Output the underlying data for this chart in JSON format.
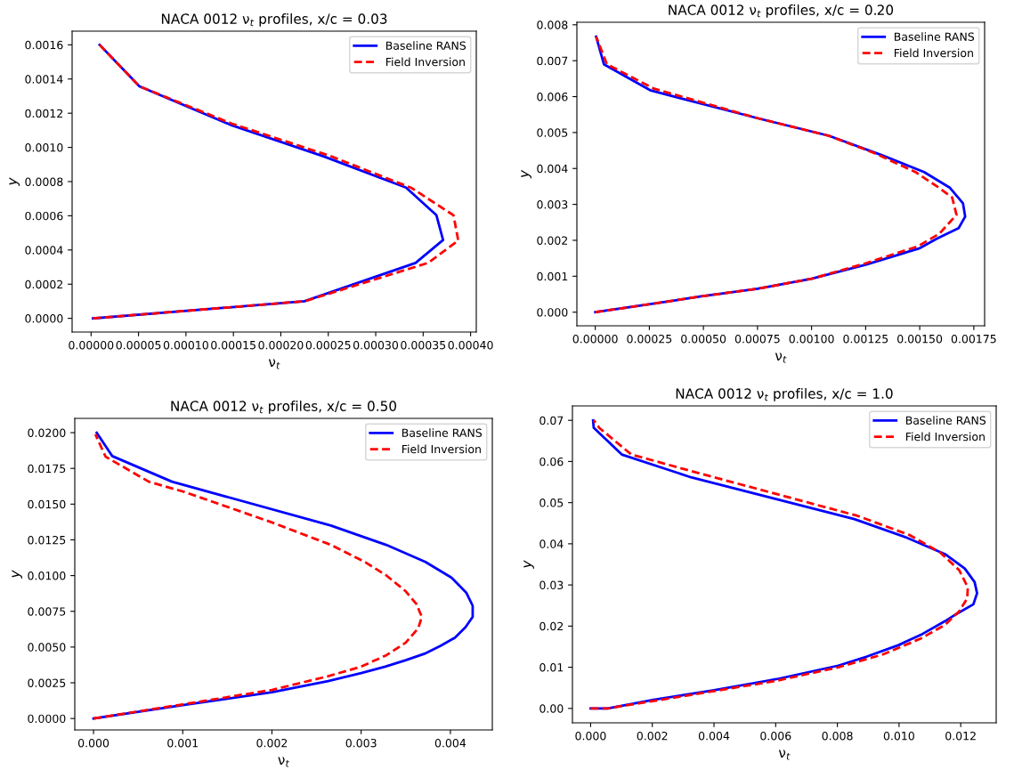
{
  "chart_data": [
    {
      "type": "line",
      "title": "NACA 0012 ν$_{t}$ profiles, x/c = 0.03",
      "xlabel": "ν$_{t}$",
      "ylabel": "y",
      "legend": "top right",
      "grid": false,
      "xlim": [
        -2e-05,
        0.000406
      ],
      "ylim": [
        -8e-05,
        0.00168
      ],
      "xticks": [
        {
          "value": 0,
          "label": "0.00000"
        },
        {
          "value": 5e-05,
          "label": "0.00005"
        },
        {
          "value": 0.0001,
          "label": "0.00010"
        },
        {
          "value": 0.00015,
          "label": "0.00015"
        },
        {
          "value": 0.0002,
          "label": "0.00020"
        },
        {
          "value": 0.00025,
          "label": "0.00025"
        },
        {
          "value": 0.0003,
          "label": "0.00030"
        },
        {
          "value": 0.00035,
          "label": "0.00035"
        },
        {
          "value": 0.0004,
          "label": "0.00040"
        }
      ],
      "yticks": [
        {
          "value": 0,
          "label": "0.0000"
        },
        {
          "value": 0.0002,
          "label": "0.0002"
        },
        {
          "value": 0.0004,
          "label": "0.0004"
        },
        {
          "value": 0.0006,
          "label": "0.0006"
        },
        {
          "value": 0.0008,
          "label": "0.0008"
        },
        {
          "value": 0.001,
          "label": "0.0010"
        },
        {
          "value": 0.0012,
          "label": "0.0012"
        },
        {
          "value": 0.0014,
          "label": "0.0014"
        },
        {
          "value": 0.0016,
          "label": "0.0016"
        }
      ],
      "series": [
        {
          "name": "Baseline RANS",
          "color": "#0000ff",
          "line_style": "solid",
          "x": [
            2e-06,
            0.000225,
            0.000342,
            0.000371,
            0.000364,
            0.000332,
            0.000245,
            0.000148,
            5.1e-05,
            9e-06
          ],
          "values": [
            0,
            0.0001,
            0.000324,
            0.000458,
            0.000603,
            0.000765,
            0.000948,
            0.00113,
            0.001357,
            0.0016
          ]
        },
        {
          "name": "Field Inversion",
          "color": "#ff0000",
          "line_style": "dashed",
          "x": [
            2e-06,
            0.000225,
            0.000355,
            0.000387,
            0.000382,
            0.000338,
            0.000252,
            0.000148,
            5.1e-05,
            9e-06
          ],
          "values": [
            0,
            0.0001,
            0.000324,
            0.000455,
            0.000603,
            0.000762,
            0.00095,
            0.00114,
            0.001357,
            0.0016
          ]
        }
      ]
    },
    {
      "type": "line",
      "title": "NACA 0012 ν$_{t}$ profiles, x/c = 0.20",
      "xlabel": "ν$_{t}$",
      "ylabel": "y",
      "legend": "top right",
      "grid": false,
      "xlim": [
        -8.5e-05,
        0.0018
      ],
      "ylim": [
        -0.00038,
        0.00807
      ],
      "xticks": [
        {
          "value": 0,
          "label": "0.00000"
        },
        {
          "value": 0.00025,
          "label": "0.00025"
        },
        {
          "value": 0.0005,
          "label": "0.00050"
        },
        {
          "value": 0.00075,
          "label": "0.00075"
        },
        {
          "value": 0.001,
          "label": "0.00100"
        },
        {
          "value": 0.00125,
          "label": "0.00125"
        },
        {
          "value": 0.0015,
          "label": "0.00150"
        },
        {
          "value": 0.00175,
          "label": "0.00175"
        }
      ],
      "yticks": [
        {
          "value": 0,
          "label": "0.000"
        },
        {
          "value": 0.001,
          "label": "0.001"
        },
        {
          "value": 0.002,
          "label": "0.002"
        },
        {
          "value": 0.003,
          "label": "0.003"
        },
        {
          "value": 0.004,
          "label": "0.004"
        },
        {
          "value": 0.005,
          "label": "0.005"
        },
        {
          "value": 0.006,
          "label": "0.006"
        },
        {
          "value": 0.007,
          "label": "0.007"
        },
        {
          "value": 0.008,
          "label": "0.008"
        }
      ],
      "series": [
        {
          "name": "Baseline RANS",
          "color": "#0000ff",
          "line_style": "solid",
          "x": [
            0,
            0.00024,
            0.00049,
            0.00075,
            0.001,
            0.00125,
            0.0015,
            0.00158,
            0.00168,
            0.00171,
            0.0017,
            0.00164,
            0.00152,
            0.00132,
            0.00108,
            0.00075,
            0.000257,
            4e-05,
            4e-06
          ],
          "values": [
            0,
            0.00021,
            0.00044,
            0.00065,
            0.00093,
            0.00132,
            0.00178,
            0.00205,
            0.00234,
            0.00266,
            0.00303,
            0.00346,
            0.0039,
            0.00438,
            0.00491,
            0.0054,
            0.00617,
            0.0069,
            0.00767
          ]
        },
        {
          "name": "Field Inversion",
          "color": "#ff0000",
          "line_style": "dashed",
          "x": [
            0,
            0.00024,
            0.00049,
            0.00075,
            0.001,
            0.00125,
            0.00149,
            0.00159,
            0.00167,
            0.00165,
            0.00159,
            0.00148,
            0.00129,
            0.00108,
            0.00075,
            0.000272,
            5.4e-05,
            4e-06
          ],
          "values": [
            0,
            0.00021,
            0.00044,
            0.00065,
            0.00093,
            0.00136,
            0.00183,
            0.00218,
            0.00271,
            0.00319,
            0.00346,
            0.0039,
            0.00443,
            0.00491,
            0.0054,
            0.00622,
            0.0069,
            0.00767
          ]
        }
      ]
    },
    {
      "type": "line",
      "title": "NACA 0012 ν$_{t}$ profiles, x/c = 0.50",
      "xlabel": "ν$_{t}$",
      "ylabel": "y",
      "legend": "top right",
      "grid": false,
      "xlim": [
        -0.00021,
        0.00447
      ],
      "ylim": [
        -0.0008,
        0.021
      ],
      "xticks": [
        {
          "value": 0,
          "label": "0.000"
        },
        {
          "value": 0.001,
          "label": "0.001"
        },
        {
          "value": 0.002,
          "label": "0.002"
        },
        {
          "value": 0.003,
          "label": "0.003"
        },
        {
          "value": 0.004,
          "label": "0.004"
        }
      ],
      "yticks": [
        {
          "value": 0,
          "label": "0.0000"
        },
        {
          "value": 0.0025,
          "label": "0.0025"
        },
        {
          "value": 0.005,
          "label": "0.0050"
        },
        {
          "value": 0.0075,
          "label": "0.0075"
        },
        {
          "value": 0.01,
          "label": "0.0100"
        },
        {
          "value": 0.0125,
          "label": "0.0125"
        },
        {
          "value": 0.015,
          "label": "0.0150"
        },
        {
          "value": 0.0175,
          "label": "0.0175"
        },
        {
          "value": 0.02,
          "label": "0.0200"
        }
      ],
      "series": [
        {
          "name": "Baseline RANS",
          "color": "#0000ff",
          "line_style": "solid",
          "x": [
            0,
            0.001,
            0.002,
            0.00263,
            0.003,
            0.00327,
            0.0035,
            0.00371,
            0.00389,
            0.00405,
            0.00417,
            0.00425,
            0.00425,
            0.00418,
            0.00401,
            0.00372,
            0.00328,
            0.00266,
            0.00088,
            0.00021,
            3.6e-05
          ],
          "values": [
            0,
            0.00094,
            0.00184,
            0.00262,
            0.00318,
            0.00363,
            0.00408,
            0.00453,
            0.00509,
            0.00565,
            0.00639,
            0.00711,
            0.00789,
            0.00879,
            0.00987,
            0.01096,
            0.01215,
            0.0135,
            0.01657,
            0.01836,
            0.02
          ]
        },
        {
          "name": "Field Inversion",
          "color": "#ff0000",
          "line_style": "dashed",
          "x": [
            0,
            0.001,
            0.002,
            0.00263,
            0.003,
            0.00328,
            0.0035,
            0.00364,
            0.00368,
            0.00362,
            0.0035,
            0.00328,
            0.00305,
            0.00266,
            0.002,
            0.00102,
            0.00062,
            0.000135,
            2.1e-05
          ],
          "values": [
            0,
            0.00099,
            0.002,
            0.00296,
            0.00363,
            0.00442,
            0.00531,
            0.00632,
            0.00711,
            0.008,
            0.0089,
            0.01002,
            0.01092,
            0.01215,
            0.01372,
            0.01585,
            0.01657,
            0.01832,
            0.01989
          ]
        }
      ]
    },
    {
      "type": "line",
      "title": "NACA 0012 ν$_{t}$ profiles, x/c = 1.0",
      "xlabel": "ν$_{t}$",
      "ylabel": "y",
      "legend": "top right",
      "grid": false,
      "xlim": [
        -0.00059,
        0.01315
      ],
      "ylim": [
        -0.0035,
        0.0735
      ],
      "xticks": [
        {
          "value": 0,
          "label": "0.000"
        },
        {
          "value": 0.002,
          "label": "0.002"
        },
        {
          "value": 0.004,
          "label": "0.004"
        },
        {
          "value": 0.006,
          "label": "0.006"
        },
        {
          "value": 0.008,
          "label": "0.008"
        },
        {
          "value": 0.01,
          "label": "0.010"
        },
        {
          "value": 0.012,
          "label": "0.012"
        }
      ],
      "yticks": [
        {
          "value": 0,
          "label": "0.00"
        },
        {
          "value": 0.01,
          "label": "0.01"
        },
        {
          "value": 0.02,
          "label": "0.02"
        },
        {
          "value": 0.03,
          "label": "0.03"
        },
        {
          "value": 0.04,
          "label": "0.04"
        },
        {
          "value": 0.05,
          "label": "0.05"
        },
        {
          "value": 0.06,
          "label": "0.06"
        },
        {
          "value": 0.07,
          "label": "0.07"
        }
      ],
      "series": [
        {
          "name": "Baseline RANS",
          "color": "#0000ff",
          "line_style": "solid",
          "x": [
            0,
            0.00055,
            0.00204,
            0.004,
            0.00602,
            0.00803,
            0.00896,
            0.00999,
            0.01076,
            0.01149,
            0.01185,
            0.01241,
            0.01253,
            0.01245,
            0.01213,
            0.01149,
            0.01025,
            0.00855,
            0.00328,
            0.00101,
            0.0001,
            8e-05
          ],
          "values": [
            0,
            0,
            0.0021,
            0.0044,
            0.0071,
            0.0104,
            0.0126,
            0.0154,
            0.0181,
            0.0212,
            0.0229,
            0.0253,
            0.028,
            0.0307,
            0.034,
            0.0375,
            0.0415,
            0.046,
            0.0561,
            0.0617,
            0.0682,
            0.07
          ]
        },
        {
          "name": "Field Inversion",
          "color": "#ff0000",
          "line_style": "dashed",
          "x": [
            0,
            0.00055,
            0.004,
            0.00602,
            0.00803,
            0.00947,
            0.01071,
            0.01149,
            0.01195,
            0.01221,
            0.01223,
            0.01195,
            0.01133,
            0.01035,
            0.00865,
            0.00617,
            0.00349,
            0.00132,
            0.00029,
            0.0001
          ],
          "values": [
            0,
            0,
            0.0042,
            0.0067,
            0.01,
            0.0131,
            0.017,
            0.0203,
            0.0236,
            0.0267,
            0.0294,
            0.0336,
            0.0379,
            0.0421,
            0.0468,
            0.0518,
            0.0572,
            0.0617,
            0.0681,
            0.07
          ]
        }
      ]
    }
  ]
}
